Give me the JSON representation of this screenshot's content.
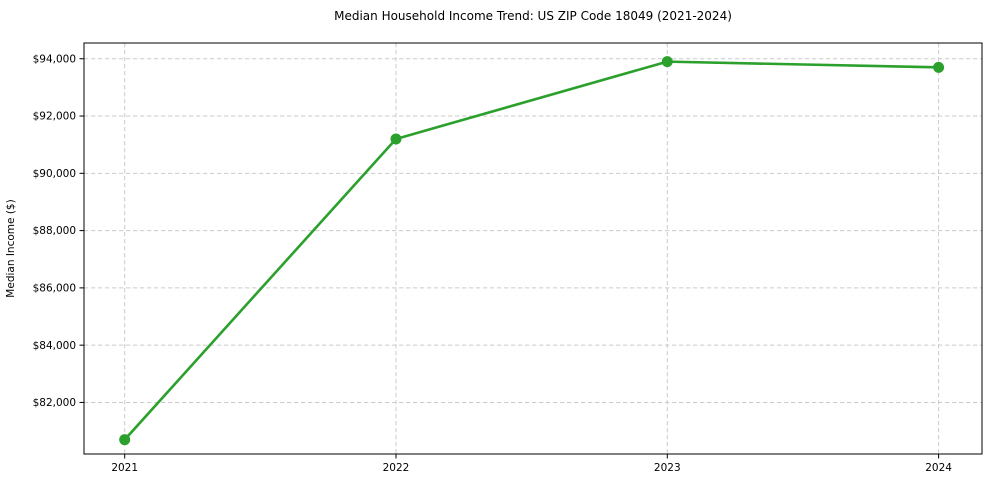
{
  "chart_data": {
    "type": "line",
    "title": "Median Household Income Trend: US ZIP Code 18049 (2021-2024)",
    "xlabel": "",
    "ylabel": "Median Income ($)",
    "x": [
      2021,
      2022,
      2023,
      2024
    ],
    "series": [
      {
        "name": "Median Income",
        "values": [
          80700,
          91200,
          93900,
          93700
        ],
        "color": "#2ca02c",
        "marker": "circle",
        "marker_radius": 5.5,
        "line_width": 2.6,
        "line_style": "solid"
      }
    ],
    "xticks": [
      2021,
      2022,
      2023,
      2024
    ],
    "yticks": [
      82000,
      84000,
      86000,
      88000,
      90000,
      92000,
      94000
    ],
    "xlim": [
      2020.85,
      2024.16
    ],
    "ylim": [
      80200,
      94550
    ],
    "y_tick_prefix": "$",
    "grid": true,
    "grid_style": "dashed",
    "grid_color": "#cbcbcb",
    "legend_position": "none",
    "background_color": "#ffffff",
    "spine_color": "#000000",
    "text_color": "#000000"
  }
}
